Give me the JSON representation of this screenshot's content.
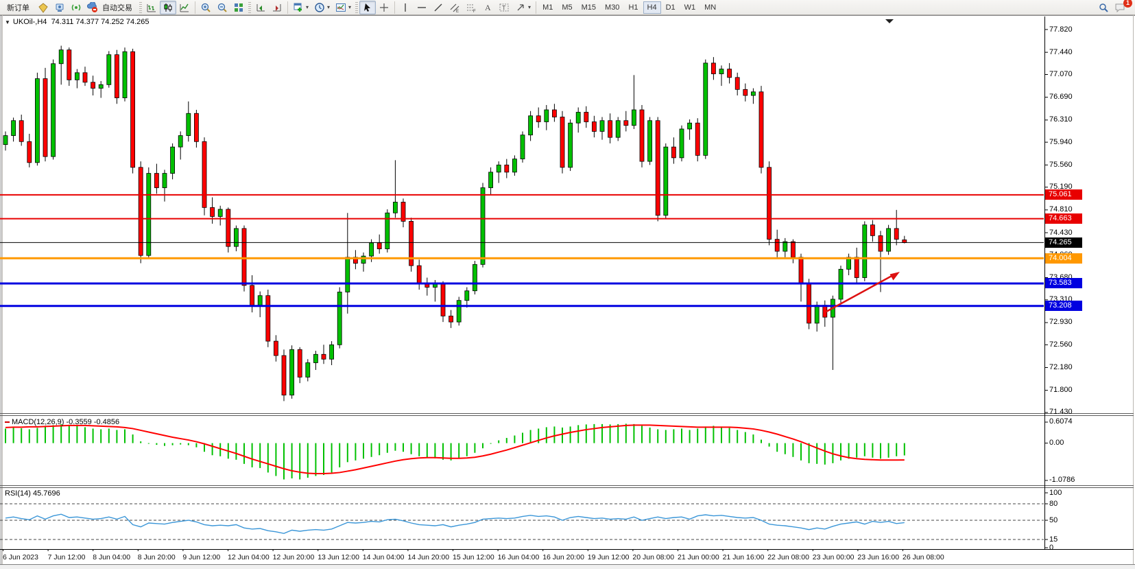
{
  "toolbar": {
    "new_order_label": "新订单",
    "auto_trading_label": "自动交易",
    "timeframes": [
      "M1",
      "M5",
      "M15",
      "M30",
      "H1",
      "H4",
      "D1",
      "W1",
      "MN"
    ],
    "active_timeframe": "H4",
    "notification_count": "1",
    "icons": [
      "metaeditor",
      "virtual-hosting",
      "signals",
      "auto-trading",
      "bar-chart",
      "candlestick-chart",
      "line-chart",
      "zoom-in",
      "zoom-out",
      "tile-windows",
      "auto-scroll",
      "chart-shift",
      "new-chart",
      "period-clock",
      "profiles",
      "cursor",
      "crosshair",
      "vertical-line",
      "horizontal-line",
      "trendline",
      "equidistant-channel",
      "fibonacci",
      "text",
      "text-label",
      "arrows",
      "search",
      "chat-notification"
    ]
  },
  "chart_data": {
    "type": "candlestick",
    "title": "UKOil-,H4",
    "ohlc_text": "74.311 74.377 74.252 74.265",
    "ylim": [
      71.43,
      77.82
    ],
    "price_ticks": [
      "77.820",
      "77.440",
      "77.070",
      "76.690",
      "76.310",
      "75.940",
      "75.560",
      "75.190",
      "74.810",
      "74.430",
      "74.060",
      "73.680",
      "73.310",
      "72.930",
      "72.560",
      "72.180",
      "71.800",
      "71.430"
    ],
    "colors": {
      "bull": "#00c000",
      "bear": "#ff0000",
      "wick": "#000000"
    },
    "level_lines": [
      {
        "price": 75.061,
        "label": "75.061",
        "color": "#e80000",
        "width": 2
      },
      {
        "price": 74.663,
        "label": "74.663",
        "color": "#e80000",
        "width": 2
      },
      {
        "price": 74.265,
        "label": "74.265",
        "color": "#000000",
        "width": 1
      },
      {
        "price": 74.004,
        "label": "74.004",
        "color": "#ff9800",
        "width": 3
      },
      {
        "price": 73.583,
        "label": "73.583",
        "color": "#0000e0",
        "width": 3
      },
      {
        "price": 73.208,
        "label": "73.208",
        "color": "#0000e0",
        "width": 3
      }
    ],
    "arrow": {
      "color": "#dd1111"
    },
    "candles": [
      [
        75.9,
        76.12,
        75.8,
        76.05
      ],
      [
        76.05,
        76.35,
        75.95,
        76.3
      ],
      [
        76.3,
        76.4,
        75.88,
        75.95
      ],
      [
        75.95,
        76.08,
        75.52,
        75.6
      ],
      [
        75.6,
        77.1,
        75.55,
        77.0
      ],
      [
        77.0,
        77.18,
        75.62,
        75.7
      ],
      [
        75.7,
        77.32,
        75.65,
        77.25
      ],
      [
        77.25,
        77.55,
        76.9,
        77.48
      ],
      [
        77.48,
        77.52,
        76.88,
        76.98
      ],
      [
        76.98,
        77.16,
        76.84,
        77.1
      ],
      [
        77.1,
        77.2,
        76.88,
        76.94
      ],
      [
        76.94,
        77.05,
        76.72,
        76.84
      ],
      [
        76.84,
        76.96,
        76.68,
        76.9
      ],
      [
        76.9,
        77.46,
        76.85,
        77.4
      ],
      [
        77.4,
        77.48,
        76.58,
        76.68
      ],
      [
        76.68,
        77.52,
        76.62,
        77.45
      ],
      [
        77.45,
        77.5,
        75.42,
        75.52
      ],
      [
        75.52,
        75.62,
        73.92,
        74.05
      ],
      [
        74.05,
        75.52,
        74.0,
        75.42
      ],
      [
        75.42,
        75.58,
        75.08,
        75.18
      ],
      [
        75.18,
        75.48,
        74.95,
        75.42
      ],
      [
        75.42,
        75.92,
        75.32,
        75.86
      ],
      [
        75.86,
        76.12,
        75.65,
        76.05
      ],
      [
        76.05,
        76.62,
        75.95,
        76.42
      ],
      [
        76.42,
        76.48,
        75.85,
        75.95
      ],
      [
        75.95,
        76.02,
        74.72,
        74.85
      ],
      [
        74.85,
        75.02,
        74.58,
        74.7
      ],
      [
        74.7,
        74.88,
        74.55,
        74.82
      ],
      [
        74.82,
        74.85,
        74.1,
        74.2
      ],
      [
        74.2,
        74.55,
        74.12,
        74.5
      ],
      [
        74.5,
        74.55,
        73.45,
        73.55
      ],
      [
        73.55,
        73.72,
        73.1,
        73.22
      ],
      [
        73.22,
        73.45,
        73.02,
        73.38
      ],
      [
        73.38,
        73.48,
        72.52,
        72.62
      ],
      [
        72.62,
        72.72,
        72.28,
        72.38
      ],
      [
        72.38,
        72.48,
        71.62,
        71.72
      ],
      [
        71.72,
        72.55,
        71.66,
        72.48
      ],
      [
        72.48,
        72.52,
        71.92,
        72.02
      ],
      [
        72.02,
        72.32,
        71.95,
        72.26
      ],
      [
        72.26,
        72.46,
        72.14,
        72.4
      ],
      [
        72.4,
        72.56,
        72.24,
        72.32
      ],
      [
        72.32,
        72.62,
        72.22,
        72.56
      ],
      [
        72.56,
        73.52,
        72.5,
        73.44
      ],
      [
        73.44,
        74.76,
        73.08,
        74.02
      ],
      [
        74.02,
        74.14,
        73.82,
        73.92
      ],
      [
        73.92,
        74.1,
        73.78,
        74.04
      ],
      [
        74.04,
        74.32,
        73.94,
        74.26
      ],
      [
        74.26,
        74.4,
        74.08,
        74.16
      ],
      [
        74.16,
        74.82,
        74.1,
        74.76
      ],
      [
        74.76,
        75.64,
        74.68,
        74.94
      ],
      [
        74.94,
        75.0,
        74.52,
        74.62
      ],
      [
        74.62,
        74.68,
        73.78,
        73.88
      ],
      [
        73.88,
        73.98,
        73.48,
        73.58
      ],
      [
        73.58,
        73.68,
        73.38,
        73.52
      ],
      [
        73.52,
        73.64,
        73.28,
        73.58
      ],
      [
        73.58,
        73.62,
        72.94,
        73.04
      ],
      [
        73.04,
        73.14,
        72.84,
        72.94
      ],
      [
        72.94,
        73.36,
        72.88,
        73.3
      ],
      [
        73.3,
        73.52,
        73.18,
        73.46
      ],
      [
        73.46,
        73.96,
        73.4,
        73.9
      ],
      [
        73.9,
        75.26,
        73.85,
        75.18
      ],
      [
        75.18,
        75.52,
        75.06,
        75.44
      ],
      [
        75.44,
        75.62,
        75.26,
        75.56
      ],
      [
        75.56,
        75.66,
        75.34,
        75.44
      ],
      [
        75.44,
        75.72,
        75.38,
        75.66
      ],
      [
        75.66,
        76.12,
        75.6,
        76.06
      ],
      [
        76.06,
        76.46,
        75.96,
        76.38
      ],
      [
        76.38,
        76.52,
        76.18,
        76.28
      ],
      [
        76.28,
        76.56,
        76.14,
        76.48
      ],
      [
        76.48,
        76.58,
        76.28,
        76.36
      ],
      [
        76.36,
        76.46,
        75.42,
        75.52
      ],
      [
        75.52,
        76.32,
        75.46,
        76.26
      ],
      [
        76.26,
        76.52,
        76.1,
        76.44
      ],
      [
        76.44,
        76.54,
        76.18,
        76.28
      ],
      [
        76.28,
        76.38,
        76.02,
        76.12
      ],
      [
        76.12,
        76.36,
        75.98,
        76.3
      ],
      [
        76.3,
        76.42,
        75.92,
        76.02
      ],
      [
        76.02,
        76.36,
        75.96,
        76.3
      ],
      [
        76.3,
        76.46,
        76.12,
        76.22
      ],
      [
        76.22,
        77.06,
        76.16,
        76.48
      ],
      [
        76.48,
        76.56,
        75.52,
        75.62
      ],
      [
        75.62,
        76.36,
        75.56,
        76.3
      ],
      [
        76.3,
        76.36,
        74.62,
        74.72
      ],
      [
        74.72,
        75.92,
        74.66,
        75.86
      ],
      [
        75.86,
        76.02,
        75.58,
        75.68
      ],
      [
        75.68,
        76.22,
        75.62,
        76.16
      ],
      [
        76.16,
        76.32,
        75.98,
        76.26
      ],
      [
        76.26,
        76.34,
        75.62,
        75.72
      ],
      [
        75.72,
        77.32,
        75.66,
        77.26
      ],
      [
        77.26,
        77.36,
        76.98,
        77.08
      ],
      [
        77.08,
        77.22,
        76.88,
        77.16
      ],
      [
        77.16,
        77.26,
        76.92,
        77.02
      ],
      [
        77.02,
        77.1,
        76.72,
        76.82
      ],
      [
        76.82,
        76.92,
        76.62,
        76.72
      ],
      [
        76.72,
        76.84,
        76.58,
        76.78
      ],
      [
        76.78,
        76.88,
        75.42,
        75.52
      ],
      [
        75.52,
        75.62,
        74.22,
        74.32
      ],
      [
        74.32,
        74.48,
        74.02,
        74.12
      ],
      [
        74.12,
        74.34,
        74.02,
        74.28
      ],
      [
        74.28,
        74.32,
        73.92,
        74.02
      ],
      [
        74.02,
        74.08,
        73.28,
        73.58
      ],
      [
        73.58,
        73.66,
        72.82,
        72.92
      ],
      [
        72.92,
        73.28,
        72.78,
        73.22
      ],
      [
        73.22,
        73.3,
        72.86,
        73.02
      ],
      [
        73.02,
        73.38,
        72.14,
        73.32
      ],
      [
        73.32,
        73.88,
        73.26,
        73.82
      ],
      [
        73.82,
        74.08,
        73.72,
        74.02
      ],
      [
        74.02,
        74.18,
        73.58,
        73.68
      ],
      [
        73.68,
        74.62,
        73.62,
        74.56
      ],
      [
        74.56,
        74.64,
        74.28,
        74.38
      ],
      [
        74.38,
        74.46,
        73.44,
        74.12
      ],
      [
        74.12,
        74.56,
        74.06,
        74.5
      ],
      [
        74.5,
        74.81,
        74.22,
        74.32
      ],
      [
        74.311,
        74.377,
        74.252,
        74.265
      ]
    ],
    "macd": {
      "label": "MACD(12,26,9)",
      "values_text": "-0.3559 -0.4856",
      "axis_ticks": [
        "0.6074",
        "0.00",
        "-1.0786"
      ],
      "ylim": [
        -1.0786,
        0.6074
      ],
      "histogram_color": "#00c000",
      "signal_color": "#ff0000",
      "histogram": [
        0.42,
        0.45,
        0.43,
        0.4,
        0.44,
        0.48,
        0.52,
        0.55,
        0.53,
        0.5,
        0.46,
        0.42,
        0.4,
        0.42,
        0.38,
        0.4,
        0.25,
        0.05,
        -0.02,
        -0.05,
        -0.08,
        -0.06,
        -0.04,
        -0.06,
        -0.12,
        -0.25,
        -0.35,
        -0.38,
        -0.45,
        -0.48,
        -0.6,
        -0.7,
        -0.72,
        -0.85,
        -0.95,
        -1.05,
        -1.02,
        -1.05,
        -1.0,
        -0.95,
        -0.92,
        -0.85,
        -0.7,
        -0.55,
        -0.5,
        -0.45,
        -0.4,
        -0.35,
        -0.28,
        -0.22,
        -0.25,
        -0.32,
        -0.38,
        -0.42,
        -0.44,
        -0.48,
        -0.5,
        -0.45,
        -0.38,
        -0.28,
        -0.15,
        -0.02,
        0.08,
        0.15,
        0.22,
        0.3,
        0.38,
        0.42,
        0.46,
        0.48,
        0.45,
        0.48,
        0.52,
        0.54,
        0.55,
        0.55,
        0.54,
        0.55,
        0.56,
        0.55,
        0.5,
        0.45,
        0.4,
        0.38,
        0.4,
        0.42,
        0.38,
        0.42,
        0.48,
        0.5,
        0.48,
        0.44,
        0.38,
        0.32,
        0.25,
        0.1,
        -0.1,
        -0.25,
        -0.32,
        -0.4,
        -0.5,
        -0.58,
        -0.6,
        -0.62,
        -0.58,
        -0.5,
        -0.45,
        -0.42,
        -0.38,
        -0.42,
        -0.45,
        -0.42,
        -0.38,
        -0.3559
      ],
      "signal": [
        0.45,
        0.46,
        0.46,
        0.47,
        0.47,
        0.48,
        0.49,
        0.5,
        0.51,
        0.51,
        0.51,
        0.5,
        0.49,
        0.48,
        0.47,
        0.45,
        0.42,
        0.37,
        0.32,
        0.27,
        0.22,
        0.17,
        0.13,
        0.09,
        0.04,
        -0.02,
        -0.09,
        -0.16,
        -0.23,
        -0.3,
        -0.38,
        -0.46,
        -0.53,
        -0.6,
        -0.67,
        -0.74,
        -0.8,
        -0.84,
        -0.87,
        -0.88,
        -0.88,
        -0.87,
        -0.85,
        -0.81,
        -0.77,
        -0.72,
        -0.67,
        -0.62,
        -0.57,
        -0.52,
        -0.48,
        -0.45,
        -0.43,
        -0.42,
        -0.42,
        -0.43,
        -0.44,
        -0.44,
        -0.43,
        -0.41,
        -0.37,
        -0.32,
        -0.26,
        -0.2,
        -0.13,
        -0.06,
        0.01,
        0.08,
        0.15,
        0.21,
        0.26,
        0.31,
        0.35,
        0.39,
        0.42,
        0.45,
        0.47,
        0.49,
        0.51,
        0.52,
        0.52,
        0.52,
        0.51,
        0.5,
        0.49,
        0.48,
        0.47,
        0.46,
        0.46,
        0.46,
        0.46,
        0.46,
        0.45,
        0.43,
        0.41,
        0.37,
        0.32,
        0.26,
        0.19,
        0.12,
        0.04,
        -0.05,
        -0.14,
        -0.23,
        -0.31,
        -0.37,
        -0.42,
        -0.45,
        -0.47,
        -0.48,
        -0.49,
        -0.49,
        -0.49,
        -0.4856
      ]
    },
    "rsi": {
      "label": "RSI(14)",
      "value_text": "45.7696",
      "axis_ticks": [
        "100",
        "80",
        "50",
        "15",
        "0"
      ],
      "levels": [
        80,
        50,
        15
      ],
      "ylim": [
        0,
        100
      ],
      "line_color": "#3a96d8",
      "values": [
        54,
        56,
        53,
        51,
        58,
        52,
        58,
        61,
        55,
        56,
        54,
        52,
        53,
        56,
        52,
        57,
        42,
        38,
        45,
        44,
        43,
        46,
        48,
        50,
        47,
        42,
        40,
        41,
        40,
        42,
        36,
        34,
        35,
        31,
        29,
        26,
        32,
        30,
        32,
        33,
        32,
        34,
        40,
        46,
        45,
        46,
        48,
        47,
        51,
        52,
        49,
        45,
        42,
        41,
        40,
        42,
        38,
        41,
        43,
        46,
        52,
        53,
        54,
        53,
        54,
        57,
        59,
        57,
        58,
        56,
        50,
        55,
        57,
        55,
        53,
        54,
        52,
        53,
        52,
        56,
        50,
        53,
        56,
        53,
        55,
        56,
        52,
        58,
        60,
        58,
        59,
        57,
        55,
        54,
        55,
        50,
        43,
        41,
        40,
        38,
        36,
        33,
        36,
        34,
        39,
        43,
        45,
        47,
        43,
        48,
        46,
        48,
        44,
        45.7696
      ]
    },
    "time_labels": [
      "6 Jun 2023",
      "7 Jun 12:00",
      "8 Jun 04:00",
      "8 Jun 20:00",
      "9 Jun 12:00",
      "12 Jun 04:00",
      "12 Jun 20:00",
      "13 Jun 12:00",
      "14 Jun 04:00",
      "14 Jun 20:00",
      "15 Jun 12:00",
      "16 Jun 04:00",
      "16 Jun 20:00",
      "19 Jun 12:00",
      "20 Jun 08:00",
      "21 Jun 00:00",
      "21 Jun 16:00",
      "22 Jun 08:00",
      "23 Jun 00:00",
      "23 Jun 16:00",
      "26 Jun 08:00"
    ]
  }
}
